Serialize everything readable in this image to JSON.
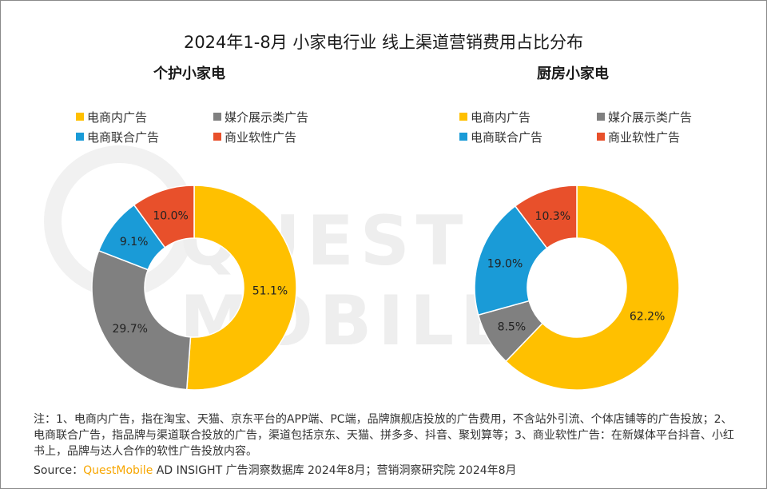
{
  "title": "2024年1-8月 小家电行业 线上渠道营销费用占比分布",
  "watermark": "QUEST MOBILE",
  "legend_labels": [
    "电商内广告",
    "媒介展示类广告",
    "电商联合广告",
    "商业软性广告"
  ],
  "colors": {
    "电商内广告": "#ffc000",
    "媒介展示类广告": "#808080",
    "电商联合广告": "#1a9bd7",
    "商业软性广告": "#e8502b"
  },
  "chart_data": [
    {
      "type": "pie",
      "title": "个护小家电",
      "donut": true,
      "slices": [
        {
          "label": "电商内广告",
          "value": 51.1,
          "display": "51.1%"
        },
        {
          "label": "媒介展示类广告",
          "value": 29.7,
          "display": "29.7%"
        },
        {
          "label": "电商联合广告",
          "value": 9.1,
          "display": "9.1%"
        },
        {
          "label": "商业软性广告",
          "value": 10.0,
          "display": "10.0%"
        }
      ]
    },
    {
      "type": "pie",
      "title": "厨房小家电",
      "donut": true,
      "slices": [
        {
          "label": "电商内广告",
          "value": 62.2,
          "display": "62.2%"
        },
        {
          "label": "媒介展示类广告",
          "value": 8.5,
          "display": "8.5%"
        },
        {
          "label": "电商联合广告",
          "value": 19.0,
          "display": "19.0%"
        },
        {
          "label": "商业软性广告",
          "value": 10.3,
          "display": "10.3%"
        }
      ]
    }
  ],
  "footnote": "注：1、电商内广告，指在淘宝、天猫、京东平台的APP端、PC端，品牌旗舰店投放的广告费用，不含站外引流、个体店铺等的广告投放；2、电商联合广告，指品牌与渠道联合投放的广告，渠道包括京东、天猫、拼多多、抖音、聚划算等；3、商业软性广告：在新媒体平台抖音、小红书上，品牌与达人合作的软性广告投放内容。",
  "source": {
    "prefix": "Source：",
    "brand": "QuestMobile",
    "rest": " AD INSIGHT 广告洞察数据库 2024年8月；营销洞察研究院 2024年8月"
  }
}
